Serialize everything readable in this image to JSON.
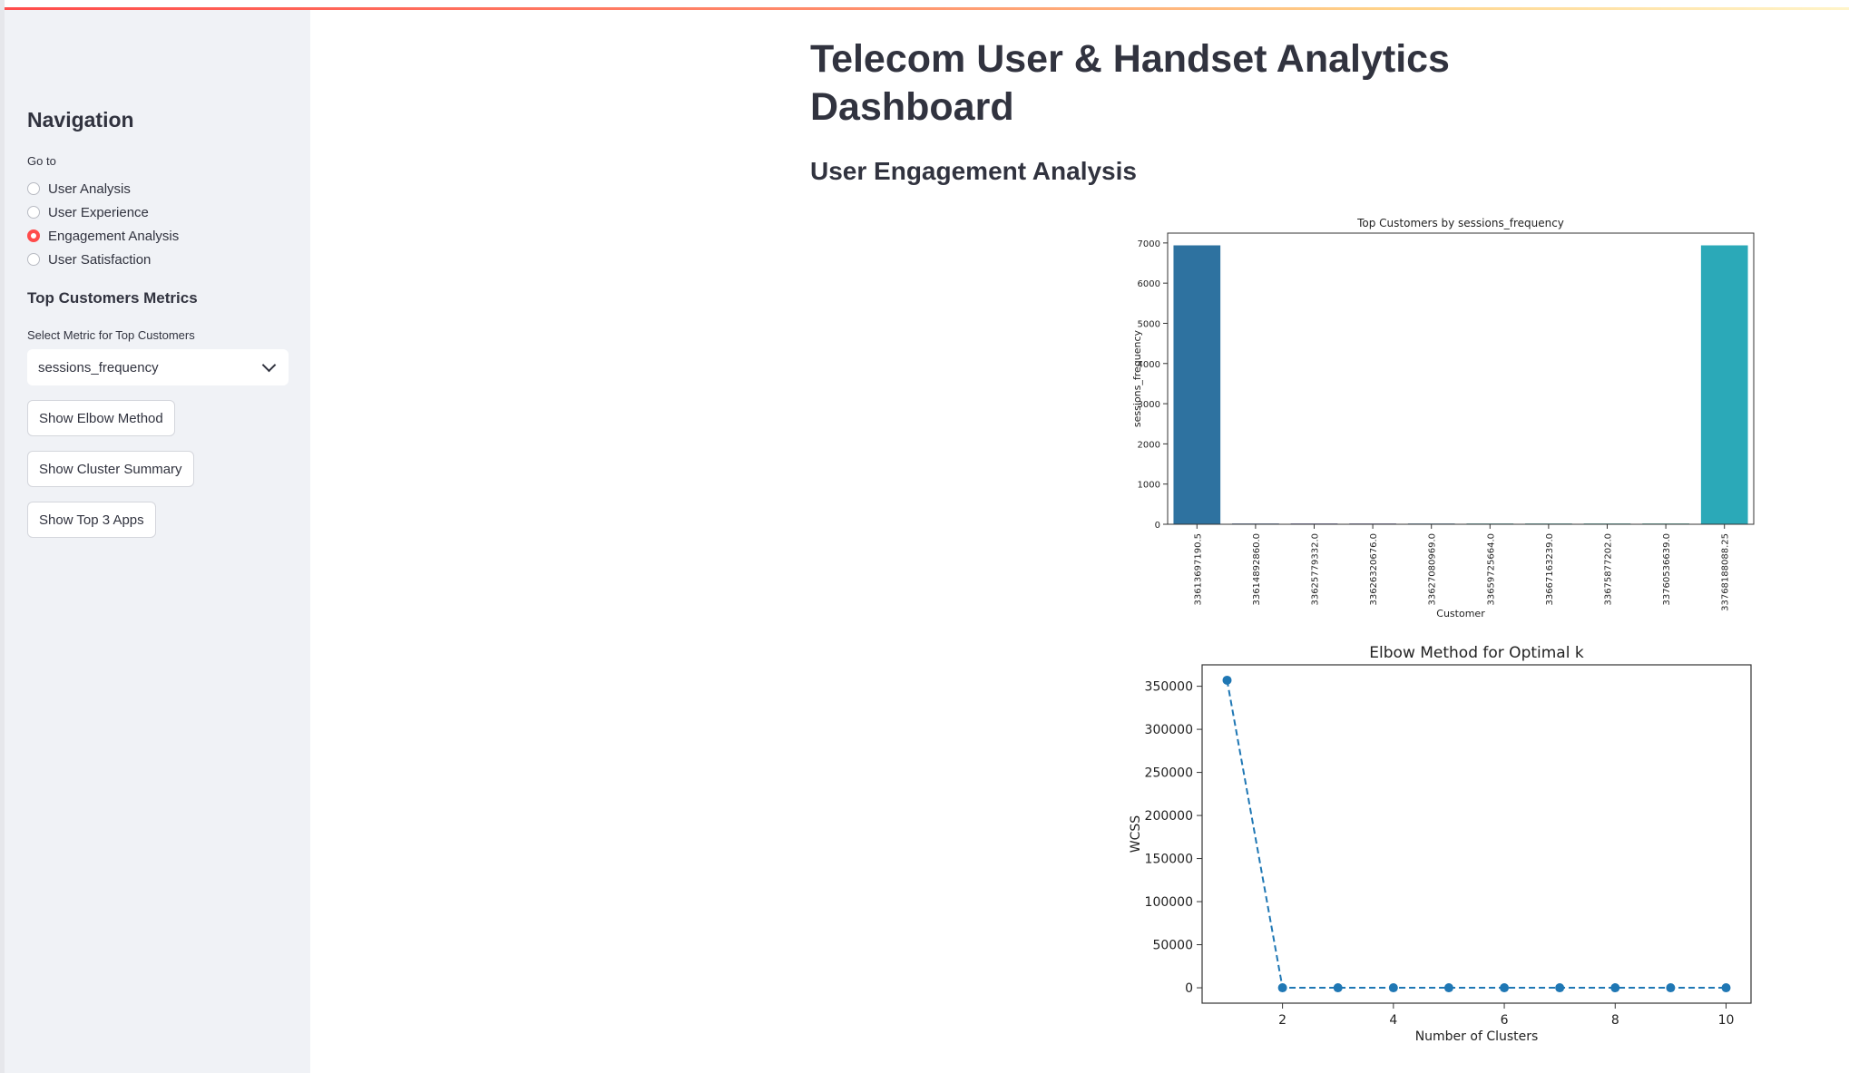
{
  "sidebar": {
    "title": "Navigation",
    "goto_label": "Go to",
    "nav_options": [
      {
        "label": "User Analysis",
        "selected": false
      },
      {
        "label": "User Experience",
        "selected": false
      },
      {
        "label": "Engagement Analysis",
        "selected": true
      },
      {
        "label": "User Satisfaction",
        "selected": false
      }
    ],
    "metrics_title": "Top Customers Metrics",
    "metric_select_label": "Select Metric for Top Customers",
    "metric_select_value": "sessions_frequency",
    "buttons": {
      "elbow": "Show Elbow Method",
      "cluster": "Show Cluster Summary",
      "top_apps": "Show Top 3 Apps"
    }
  },
  "main": {
    "title": "Telecom User & Handset Analytics Dashboard",
    "section_title": "User Engagement Analysis"
  },
  "colors": {
    "accent": "#ff4b4b",
    "sidebar_bg": "#f0f2f6",
    "line": "#1f77b4"
  },
  "chart_data": [
    {
      "type": "bar",
      "title": "Top Customers by sessions_frequency",
      "xlabel": "Customer",
      "ylabel": "sessions_frequency",
      "categories": [
        "33613697190.5",
        "33614892860.0",
        "33625779332.0",
        "33626320676.0",
        "33627080969.0",
        "33659725664.0",
        "33667163239.0",
        "33675877202.0",
        "33760536639.0",
        "33768188088.25"
      ],
      "values": [
        6940,
        18,
        18,
        18,
        18,
        18,
        18,
        18,
        18,
        6940
      ],
      "ylim": [
        0,
        7000
      ],
      "yticks": [
        0,
        1000,
        2000,
        3000,
        4000,
        5000,
        6000,
        7000
      ],
      "colors": [
        "#2e72a0",
        "#3a5a91",
        "#45498a",
        "#4d4f8d",
        "#3d6e93",
        "#2f8a8d",
        "#2d8f8a",
        "#2e978a",
        "#2f9e89",
        "#2ba9b8"
      ]
    },
    {
      "type": "line",
      "title": "Elbow Method for Optimal k",
      "xlabel": "Number of Clusters",
      "ylabel": "WCSS",
      "x": [
        1,
        2,
        3,
        4,
        5,
        6,
        7,
        8,
        9,
        10
      ],
      "y": [
        357000,
        0,
        0,
        0,
        0,
        0,
        0,
        0,
        0,
        0
      ],
      "xticks": [
        2,
        4,
        6,
        8,
        10
      ],
      "yticks": [
        0,
        50000,
        100000,
        150000,
        200000,
        250000,
        300000,
        350000
      ],
      "style": "dashed-with-markers"
    }
  ]
}
